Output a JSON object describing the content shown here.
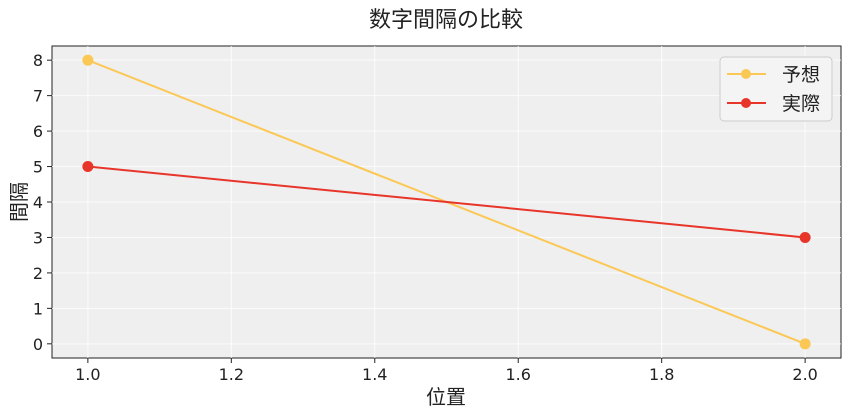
{
  "chart_data": {
    "type": "line",
    "title": "数字間隔の比較",
    "xlabel": "位置",
    "ylabel": "間隔",
    "xlim": [
      0.95,
      2.05
    ],
    "ylim": [
      -0.4,
      8.4
    ],
    "xticks": [
      "1.0",
      "1.2",
      "1.4",
      "1.6",
      "1.8",
      "2.0"
    ],
    "xtick_values": [
      1.0,
      1.2,
      1.4,
      1.6,
      1.8,
      2.0
    ],
    "yticks": [
      "0",
      "1",
      "2",
      "3",
      "4",
      "5",
      "6",
      "7",
      "8"
    ],
    "ytick_values": [
      0,
      1,
      2,
      3,
      4,
      5,
      6,
      7,
      8
    ],
    "grid": true,
    "legend_position": "top-right",
    "background": "#efefef",
    "series": [
      {
        "name": "予想",
        "color": "#fbc856",
        "x": [
          1.0,
          2.0
        ],
        "y": [
          8,
          0
        ]
      },
      {
        "name": "実際",
        "color": "#e8352a",
        "x": [
          1.0,
          2.0
        ],
        "y": [
          5,
          3
        ]
      }
    ]
  }
}
